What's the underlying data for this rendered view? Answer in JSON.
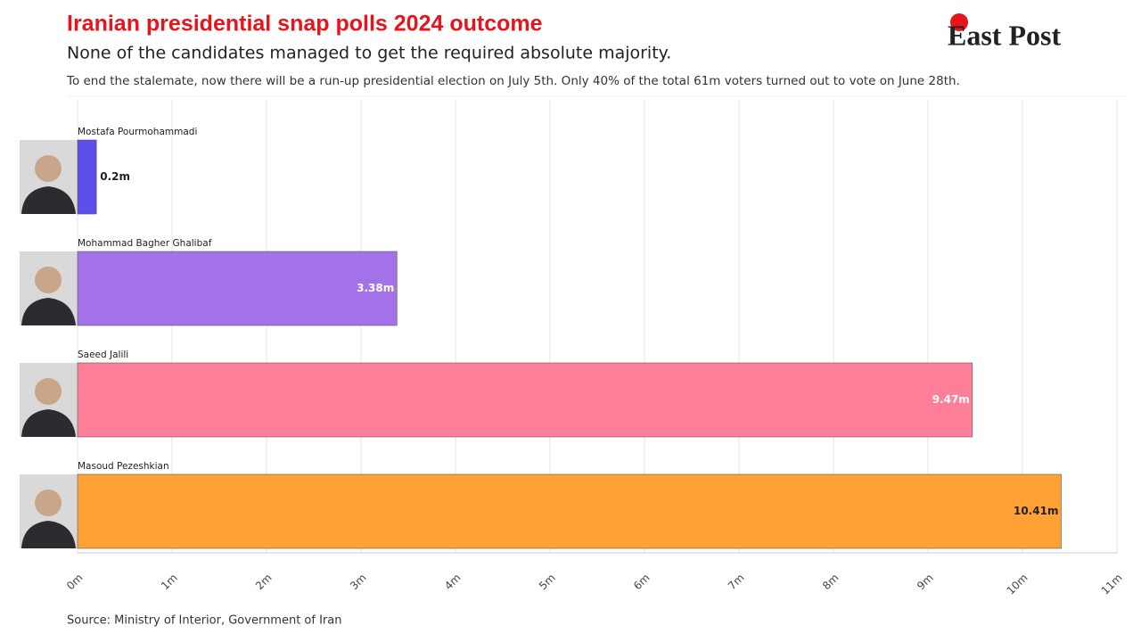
{
  "header": {
    "title": "Iranian presidential snap polls 2024 outcome",
    "subtitle": "None of the candidates managed to get the required absolute majority.",
    "note": "To end the stalemate, now there will be a run-up presidential election on July 5th. Only 40% of the total 61m voters turned out to vote on June 28th.",
    "logo": "East Post"
  },
  "chart_data": {
    "type": "bar",
    "orientation": "horizontal",
    "categories": [
      "Mostafa Pourmohammadi",
      "Mohammad Bagher Ghalibaf",
      "Saeed Jalili",
      "Masoud Pezeshkian"
    ],
    "values": [
      0.2,
      3.38,
      9.47,
      10.41
    ],
    "value_labels": [
      "0.2m",
      "3.38m",
      "9.47m",
      "10.41m"
    ],
    "colors": [
      "#5c4ee8",
      "#a472e8",
      "#ff7f9b",
      "#ffa135"
    ],
    "value_label_colors": [
      "#222222",
      "#ffffff",
      "#ffffff",
      "#222222"
    ],
    "xlim": [
      0,
      11
    ],
    "xticks": [
      {
        "value": 0,
        "label": "0m"
      },
      {
        "value": 1,
        "label": "1m"
      },
      {
        "value": 2,
        "label": "2m"
      },
      {
        "value": 3,
        "label": "3m"
      },
      {
        "value": 4,
        "label": "4m"
      },
      {
        "value": 5,
        "label": "5m"
      },
      {
        "value": 6,
        "label": "6m"
      },
      {
        "value": 7,
        "label": "7m"
      },
      {
        "value": 8,
        "label": "8m"
      },
      {
        "value": 9,
        "label": "9m"
      },
      {
        "value": 10,
        "label": "10m"
      },
      {
        "value": 11,
        "label": "11m"
      }
    ],
    "grid": true
  },
  "footer": {
    "source": "Source: Ministry of Interior, Government of Iran"
  }
}
